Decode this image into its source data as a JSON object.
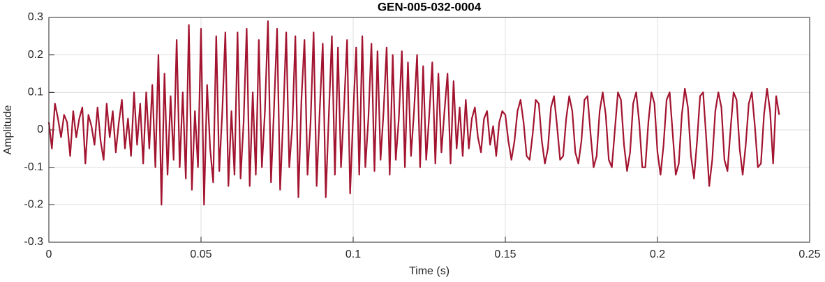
{
  "chart_data": {
    "type": "line",
    "title": "GEN-005-032-0004",
    "x_label": "Time (s)",
    "y_label": "Amplitude",
    "color": "#a2142f",
    "grid": true,
    "xlim": [
      0,
      0.25
    ],
    "xticks": [
      0,
      0.05,
      0.1,
      0.15,
      0.2,
      0.25
    ],
    "ylim": [
      -0.3,
      0.3
    ],
    "yticks": [
      -0.3,
      -0.2,
      -0.1,
      0,
      0.1,
      0.2,
      0.3
    ],
    "x": [
      0,
      0.001,
      0.002,
      0.003,
      0.004,
      0.005,
      0.006,
      0.007,
      0.008,
      0.009,
      0.01,
      0.011,
      0.012,
      0.013,
      0.014,
      0.015,
      0.016,
      0.017,
      0.018,
      0.019,
      0.02,
      0.021,
      0.022,
      0.023,
      0.024,
      0.025,
      0.026,
      0.027,
      0.028,
      0.029,
      0.03,
      0.031,
      0.032,
      0.033,
      0.034,
      0.035,
      0.036,
      0.037,
      0.038,
      0.039,
      0.04,
      0.041,
      0.042,
      0.043,
      0.044,
      0.045,
      0.046,
      0.047,
      0.048,
      0.049,
      0.05,
      0.051,
      0.052,
      0.053,
      0.054,
      0.055,
      0.056,
      0.057,
      0.058,
      0.059,
      0.06,
      0.061,
      0.062,
      0.063,
      0.064,
      0.065,
      0.066,
      0.067,
      0.068,
      0.069,
      0.07,
      0.071,
      0.072,
      0.073,
      0.074,
      0.075,
      0.076,
      0.077,
      0.078,
      0.079,
      0.08,
      0.081,
      0.082,
      0.083,
      0.084,
      0.085,
      0.086,
      0.087,
      0.088,
      0.089,
      0.09,
      0.091,
      0.092,
      0.093,
      0.094,
      0.095,
      0.096,
      0.097,
      0.098,
      0.099,
      0.1,
      0.101,
      0.102,
      0.103,
      0.104,
      0.105,
      0.106,
      0.107,
      0.108,
      0.109,
      0.11,
      0.111,
      0.112,
      0.113,
      0.114,
      0.115,
      0.116,
      0.117,
      0.118,
      0.119,
      0.12,
      0.121,
      0.122,
      0.123,
      0.124,
      0.125,
      0.126,
      0.127,
      0.128,
      0.129,
      0.13,
      0.131,
      0.132,
      0.133,
      0.134,
      0.135,
      0.136,
      0.137,
      0.138,
      0.139,
      0.14,
      0.141,
      0.142,
      0.143,
      0.144,
      0.145,
      0.146,
      0.147,
      0.148,
      0.149,
      0.15,
      0.151,
      0.152,
      0.153,
      0.154,
      0.155,
      0.156,
      0.157,
      0.158,
      0.159,
      0.16,
      0.161,
      0.162,
      0.163,
      0.164,
      0.165,
      0.166,
      0.167,
      0.168,
      0.169,
      0.17,
      0.171,
      0.172,
      0.173,
      0.174,
      0.175,
      0.176,
      0.177,
      0.178,
      0.179,
      0.18,
      0.181,
      0.182,
      0.183,
      0.184,
      0.185,
      0.186,
      0.187,
      0.188,
      0.189,
      0.19,
      0.191,
      0.192,
      0.193,
      0.194,
      0.195,
      0.196,
      0.197,
      0.198,
      0.199,
      0.2,
      0.201,
      0.202,
      0.203,
      0.204,
      0.205,
      0.206,
      0.207,
      0.208,
      0.209,
      0.21,
      0.211,
      0.212,
      0.213,
      0.214,
      0.215,
      0.216,
      0.217,
      0.218,
      0.219,
      0.22,
      0.221,
      0.222,
      0.223,
      0.224,
      0.225,
      0.226,
      0.227,
      0.228,
      0.229,
      0.23,
      0.231,
      0.232,
      0.233,
      0.234,
      0.235,
      0.236,
      0.237,
      0.238,
      0.239,
      0.24
    ],
    "values": [
      0.02,
      -0.05,
      0.07,
      0.03,
      -0.02,
      0.04,
      0.02,
      -0.07,
      0.05,
      -0.02,
      0.03,
      0.06,
      -0.09,
      0.04,
      0.01,
      -0.04,
      0.06,
      -0.03,
      -0.08,
      0.07,
      -0.02,
      0.05,
      -0.06,
      0.02,
      0.08,
      -0.05,
      0.03,
      -0.07,
      0.1,
      -0.04,
      0.07,
      -0.09,
      0.1,
      -0.05,
      0.12,
      -0.1,
      0.2,
      -0.2,
      0.15,
      -0.12,
      0.09,
      -0.08,
      0.24,
      -0.1,
      0.1,
      -0.13,
      0.28,
      -0.16,
      0.05,
      -0.1,
      0.27,
      -0.2,
      0.12,
      -0.05,
      -0.14,
      0.25,
      -0.11,
      0.05,
      0.26,
      -0.15,
      0.05,
      -0.12,
      0.26,
      -0.13,
      0.02,
      0.27,
      -0.15,
      0.1,
      -0.12,
      0.24,
      -0.1,
      0.05,
      0.29,
      -0.14,
      0.06,
      0.27,
      -0.16,
      0.03,
      0.26,
      -0.1,
      0.01,
      0.25,
      -0.18,
      0.08,
      0.24,
      -0.12,
      0.02,
      0.26,
      -0.15,
      0.05,
      0.23,
      -0.18,
      0.04,
      0.25,
      -0.12,
      0.22,
      -0.1,
      0.06,
      0.24,
      -0.17,
      0.04,
      0.22,
      -0.12,
      0.25,
      -0.1,
      0.03,
      0.23,
      -0.11,
      0.21,
      -0.08,
      0.05,
      0.22,
      -0.12,
      0.2,
      -0.08,
      0.03,
      0.21,
      -0.1,
      0.18,
      -0.07,
      0.05,
      0.2,
      -0.1,
      0.17,
      -0.08,
      0.04,
      0.18,
      -0.09,
      0.15,
      -0.06,
      0.05,
      0.15,
      -0.09,
      0.13,
      -0.05,
      0.06,
      -0.07,
      0.08,
      -0.05,
      0.03,
      0.06,
      -0.02,
      -0.06,
      0.03,
      0.05,
      -0.04,
      0.01,
      -0.07,
      0.02,
      0.05,
      0.04,
      -0.03,
      -0.08,
      -0.03,
      0.05,
      0.08,
      0.02,
      -0.07,
      -0.08,
      -0.01,
      0.08,
      0.07,
      -0.03,
      -0.09,
      -0.05,
      0.06,
      0.09,
      0.01,
      -0.08,
      -0.07,
      0.03,
      0.09,
      0.05,
      -0.06,
      -0.09,
      -0.03,
      0.08,
      0.09,
      -0.01,
      -0.1,
      -0.07,
      0.05,
      0.1,
      0.04,
      -0.08,
      -0.1,
      0.0,
      0.1,
      0.08,
      -0.04,
      -0.11,
      -0.06,
      0.07,
      0.1,
      0.02,
      -0.1,
      -0.1,
      0.02,
      0.1,
      0.07,
      -0.06,
      -0.12,
      -0.04,
      0.08,
      0.1,
      -0.01,
      -0.12,
      -0.09,
      0.04,
      0.11,
      0.06,
      -0.07,
      -0.13,
      -0.03,
      0.09,
      0.1,
      -0.02,
      -0.15,
      -0.08,
      0.05,
      0.1,
      0.06,
      -0.08,
      -0.11,
      0.0,
      0.1,
      0.08,
      -0.05,
      -0.12,
      -0.04,
      0.07,
      0.1,
      0.01,
      -0.1,
      -0.09,
      0.04,
      0.11,
      0.05,
      -0.09,
      0.09,
      0.04
    ]
  }
}
